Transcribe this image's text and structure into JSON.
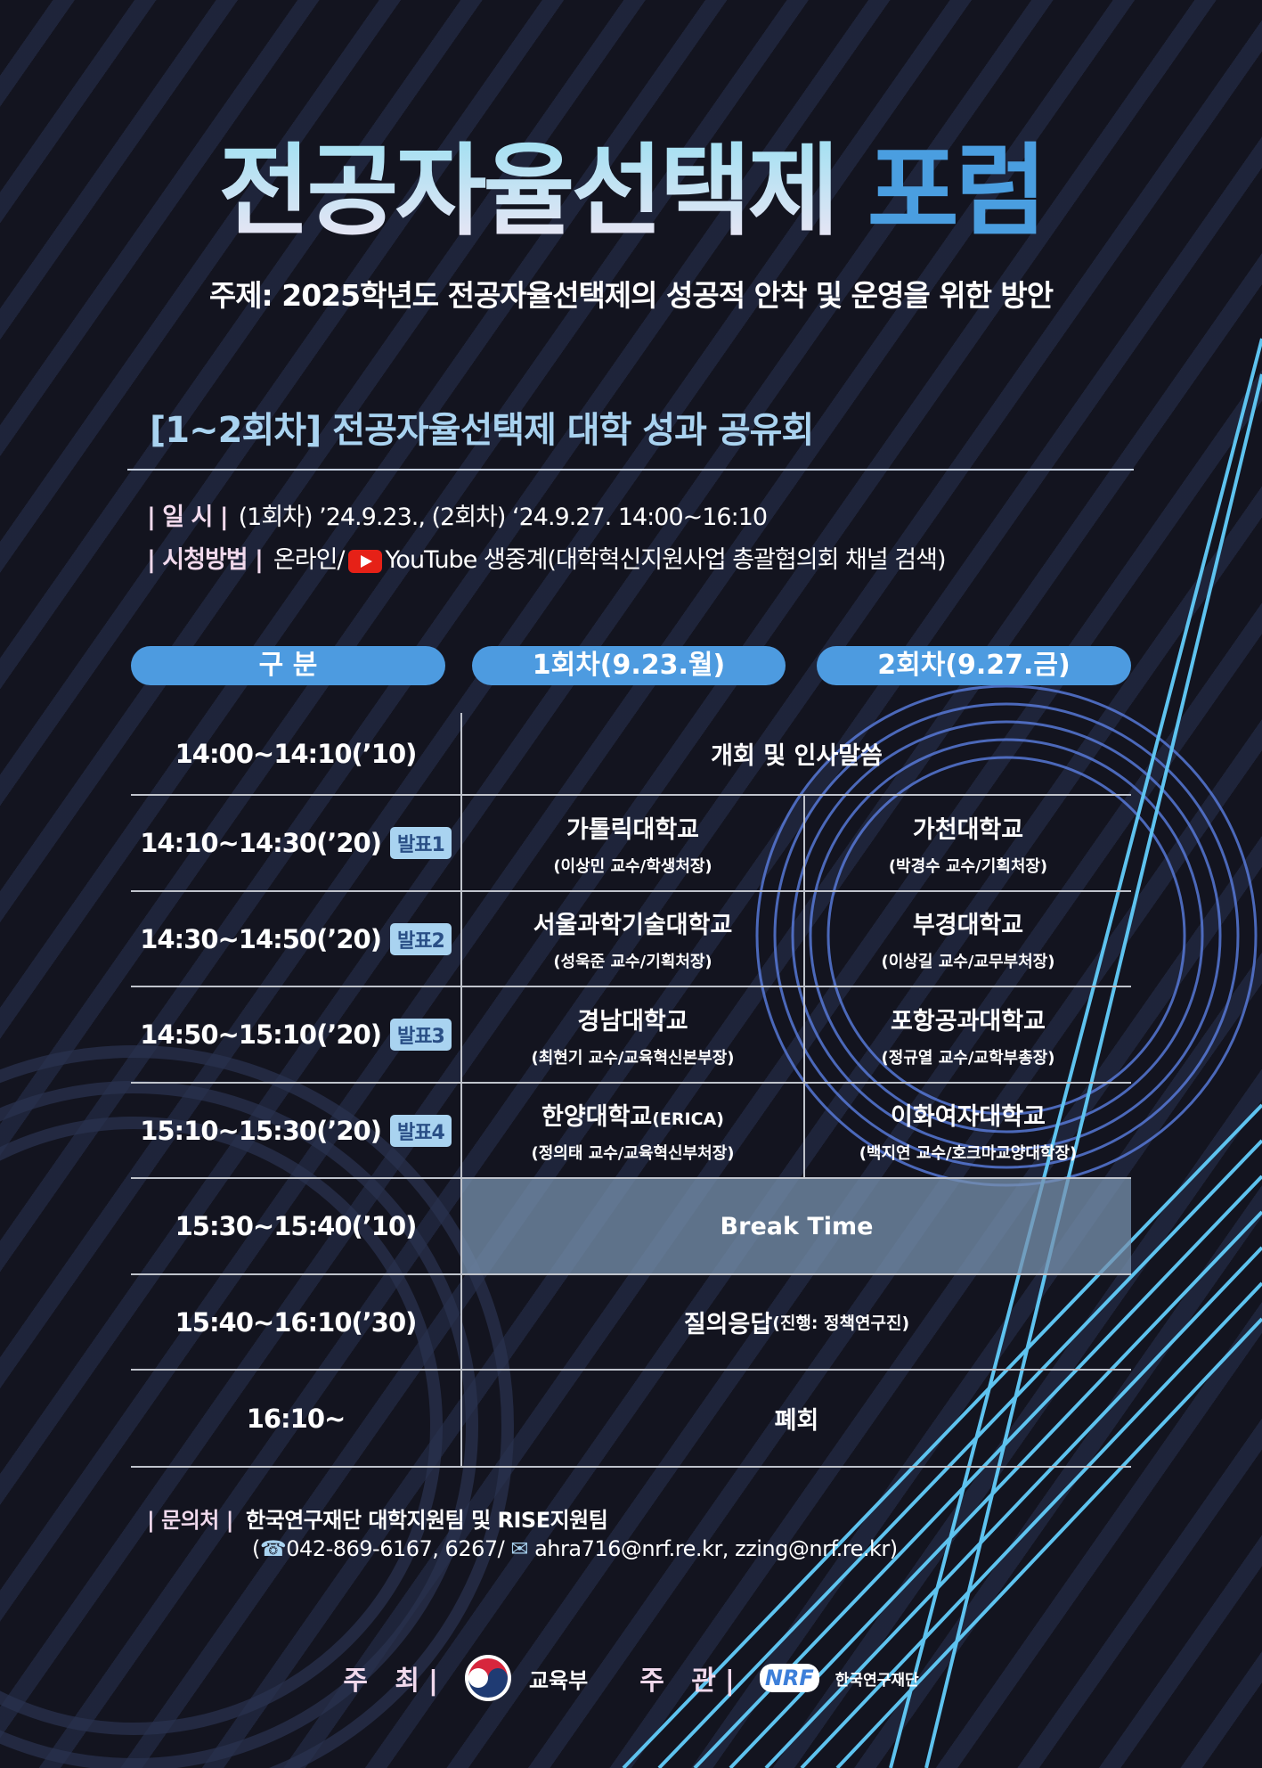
{
  "title": {
    "main": "전공자율선택제",
    "accent": "포럼"
  },
  "subtitle": "주제: 2025학년도 전공자율선택제의 성공적 안착 및 운영을 위한 방안",
  "section_title": "[1~2회차] 전공자율선택제 대학 성과 공유회",
  "info": {
    "date_label": "| 일  시 |",
    "date_value": "(1회차) ’24.9.23., (2회차) ‘24.9.27. 14:00~16:10",
    "watch_label": "| 시청방법 |",
    "watch_prefix": "온라인/",
    "watch_icon": "youtube-icon",
    "watch_value": "YouTube 생중계(대학혁신지원사업 총괄협의회 채널 검색)"
  },
  "table": {
    "headers": [
      "구  분",
      "1회차(9.23.월)",
      "2회차(9.27.금)"
    ],
    "rows": [
      {
        "time": "14:00~14:10(’10)",
        "span": "개회 및 인사말씀"
      },
      {
        "time": "14:10~14:30(’20)",
        "badge": "발표1",
        "d1": "가톨릭대학교",
        "p1": "(이상민 교수/학생처장)",
        "d2": "가천대학교",
        "p2": "(박경수 교수/기획처장)"
      },
      {
        "time": "14:30~14:50(’20)",
        "badge": "발표2",
        "d1": "서울과학기술대학교",
        "p1": "(성욱준 교수/기획처장)",
        "d2": "부경대학교",
        "p2": "(이상길 교수/교무부처장)"
      },
      {
        "time": "14:50~15:10(’20)",
        "badge": "발표3",
        "d1": "경남대학교",
        "p1": "(최현기 교수/교육혁신본부장)",
        "d2": "포항공과대학교",
        "p2": "(정규열 교수/교학부총장)"
      },
      {
        "time": "15:10~15:30(’20)",
        "badge": "발표4",
        "d1": "한양대학교",
        "d1_suffix": "(ERICA)",
        "p1": "(정의태 교수/교육혁신부처장)",
        "d2": "이화여자대학교",
        "p2": "(백지연 교수/호크마교양대학장)"
      },
      {
        "time": "15:30~15:40(’10)",
        "span": "Break Time"
      },
      {
        "time": "15:40~16:10(’30)",
        "span": "질의응답",
        "span_suffix": "(진행: 정책연구진)"
      },
      {
        "time": "16:10~",
        "span": "폐회"
      }
    ]
  },
  "contact": {
    "label": "| 문의처 |",
    "org": "한국연구재단 대학지원팀 및 RISE지원팀",
    "phone_icon": "phone-icon",
    "phone": "042-869-6167, 6267/",
    "mail_icon": "mail-icon",
    "email": "ahra716@nrf.re.kr, zzing@nrf.re.kr)",
    "open": "("
  },
  "footer": {
    "host_label": "주 최|",
    "host": "교육부",
    "organizer_label": "주 관|",
    "organizer": "한국연구재단",
    "organizer_logo": "NRF"
  },
  "colors": {
    "background": "#13141f",
    "accent": "#4d9be0",
    "heading": "#a9d3f0",
    "break_row": "#6b7f98"
  }
}
